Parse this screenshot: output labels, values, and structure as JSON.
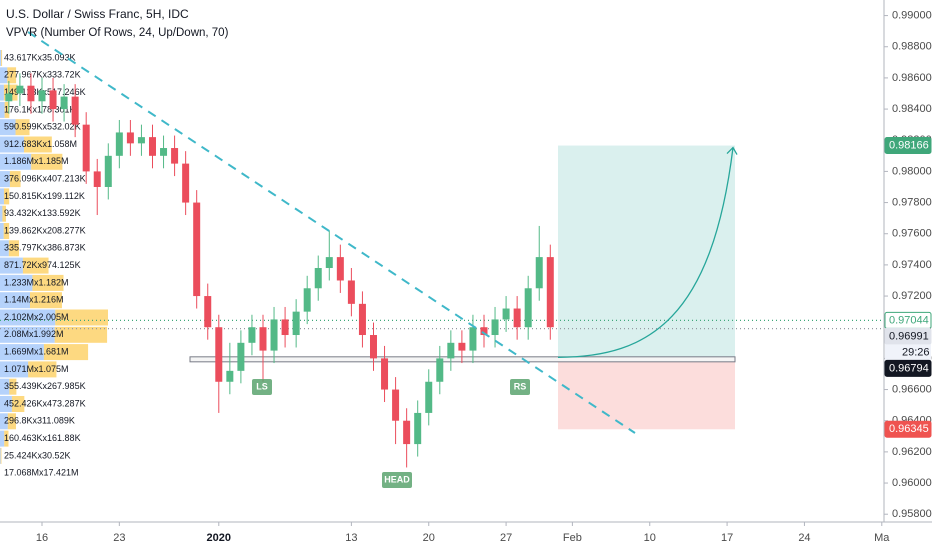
{
  "chart_data": {
    "type": "candlestick",
    "title": "U.S. Dollar / Swiss Franc, 5H, IDC",
    "subtitle": "VPVR (Number Of Rows, 24, Up/Down, 70)",
    "up_color": "#53b987",
    "down_color": "#eb4d5c",
    "x": [
      -3,
      -2,
      -1,
      0,
      1,
      2,
      3,
      4,
      5,
      6,
      7,
      8,
      9,
      10,
      11,
      12,
      13,
      14,
      15,
      16,
      17,
      18,
      19,
      20,
      21,
      22,
      23,
      24,
      25,
      26,
      27,
      28,
      29,
      30,
      31,
      32,
      33,
      34,
      35,
      36,
      37,
      38,
      39,
      40,
      41,
      42,
      43,
      44,
      45,
      46
    ],
    "open": [
      0.9845,
      0.985,
      0.9855,
      0.9845,
      0.9852,
      0.984,
      0.9848,
      0.983,
      0.98,
      0.979,
      0.981,
      0.9825,
      0.9818,
      0.9822,
      0.981,
      0.9815,
      0.9805,
      0.978,
      0.972,
      0.97,
      0.9665,
      0.9672,
      0.969,
      0.97,
      0.9685,
      0.9705,
      0.9695,
      0.971,
      0.9725,
      0.9738,
      0.9745,
      0.973,
      0.9715,
      0.9695,
      0.968,
      0.966,
      0.964,
      0.9625,
      0.9645,
      0.9665,
      0.968,
      0.969,
      0.9685,
      0.97,
      0.9695,
      0.9705,
      0.9712,
      0.97,
      0.9725,
      0.9745
    ],
    "high": [
      0.9858,
      0.9863,
      0.9863,
      0.986,
      0.986,
      0.9856,
      0.9856,
      0.9838,
      0.9808,
      0.9818,
      0.9833,
      0.9833,
      0.983,
      0.983,
      0.9823,
      0.9823,
      0.9813,
      0.9788,
      0.9728,
      0.9708,
      0.969,
      0.9698,
      0.9708,
      0.9708,
      0.9713,
      0.9713,
      0.9718,
      0.9733,
      0.9746,
      0.9762,
      0.9753,
      0.9738,
      0.9723,
      0.9703,
      0.9688,
      0.9668,
      0.9648,
      0.9653,
      0.9673,
      0.9688,
      0.9698,
      0.9698,
      0.9708,
      0.9708,
      0.9713,
      0.972,
      0.972,
      0.9733,
      0.9765,
      0.9753
    ],
    "low": [
      0.9837,
      0.9842,
      0.9837,
      0.9837,
      0.9832,
      0.9832,
      0.9822,
      0.9792,
      0.9772,
      0.9782,
      0.9802,
      0.981,
      0.981,
      0.9802,
      0.9802,
      0.9797,
      0.9772,
      0.9712,
      0.9692,
      0.9645,
      0.9657,
      0.9664,
      0.9682,
      0.9665,
      0.9677,
      0.9687,
      0.9687,
      0.9702,
      0.9717,
      0.973,
      0.9722,
      0.9707,
      0.9687,
      0.9672,
      0.9652,
      0.9625,
      0.961,
      0.9617,
      0.9637,
      0.9657,
      0.9672,
      0.9677,
      0.9677,
      0.9687,
      0.9687,
      0.9697,
      0.9692,
      0.9692,
      0.9717,
      0.9692
    ],
    "close": [
      0.985,
      0.9855,
      0.9845,
      0.9852,
      0.984,
      0.9848,
      0.983,
      0.98,
      0.979,
      0.981,
      0.9825,
      0.9818,
      0.9822,
      0.981,
      0.9815,
      0.9805,
      0.978,
      0.972,
      0.97,
      0.9665,
      0.9672,
      0.969,
      0.97,
      0.9685,
      0.9705,
      0.9695,
      0.971,
      0.9725,
      0.9738,
      0.9745,
      0.973,
      0.9715,
      0.9695,
      0.968,
      0.966,
      0.964,
      0.9625,
      0.9645,
      0.9665,
      0.968,
      0.969,
      0.9685,
      0.97,
      0.9695,
      0.9705,
      0.9712,
      0.97,
      0.9725,
      0.9745,
      0.97
    ],
    "xlim": [
      -3.8,
      76.2
    ],
    "xticks": [
      {
        "value": 0,
        "label": "16"
      },
      {
        "value": 7,
        "label": "23"
      },
      {
        "value": 16,
        "label": "2020"
      },
      {
        "value": 28,
        "label": "13"
      },
      {
        "value": 35,
        "label": "20"
      },
      {
        "value": 42,
        "label": "27"
      },
      {
        "value": 48,
        "label": "Feb"
      },
      {
        "value": 55,
        "label": "10"
      },
      {
        "value": 62,
        "label": "17"
      },
      {
        "value": 69,
        "label": "24"
      },
      {
        "value": 76,
        "label": "Ma"
      }
    ],
    "ylim": [
      0.9575,
      0.991
    ],
    "yticks": [
      {
        "value": 0.958,
        "label": "0.95800"
      },
      {
        "value": 0.96,
        "label": "0.96000"
      },
      {
        "value": 0.962,
        "label": "0.96200"
      },
      {
        "value": 0.964,
        "label": "0.96400"
      },
      {
        "value": 0.966,
        "label": "0.96600"
      },
      {
        "value": 0.968,
        "label": "0.96800"
      },
      {
        "value": 0.97,
        "label": "0.97000"
      },
      {
        "value": 0.972,
        "label": "0.97200"
      },
      {
        "value": 0.974,
        "label": "0.97400"
      },
      {
        "value": 0.976,
        "label": "0.97600"
      },
      {
        "value": 0.978,
        "label": "0.97800"
      },
      {
        "value": 0.98,
        "label": "0.98000"
      },
      {
        "value": 0.982,
        "label": "0.98200"
      },
      {
        "value": 0.984,
        "label": "0.98400"
      },
      {
        "value": 0.986,
        "label": "0.98600"
      },
      {
        "value": 0.988,
        "label": "0.98800"
      },
      {
        "value": 0.99,
        "label": "0.99000"
      }
    ],
    "volume_profile": {
      "up_color": "#5b9cf6",
      "down_color": "#fbc02d",
      "rows": [
        {
          "up": 43.617,
          "down": 35.093,
          "label": "43.617Kx35.093K"
        },
        {
          "up": 277.967,
          "down": 333.72,
          "label": "277.967Kx333.72K"
        },
        {
          "up": 149.123,
          "down": 517.246,
          "label": "149.123Kx517.246K"
        },
        {
          "up": 176.1,
          "down": 178.301,
          "label": "176.1Kx178.301K"
        },
        {
          "up": 590.599,
          "down": 532.02,
          "label": "590.599Kx532.02K"
        },
        {
          "up": 912.683,
          "down": 1058,
          "label": "912.683Kx1.058M"
        },
        {
          "up": 1186,
          "down": 1185,
          "label": "1.186Mx1.185M"
        },
        {
          "up": 376.096,
          "down": 407.213,
          "label": "376.096Kx407.213K"
        },
        {
          "up": 150.815,
          "down": 199.112,
          "label": "150.815Kx199.112K"
        },
        {
          "up": 93.432,
          "down": 133.592,
          "label": "93.432Kx133.592K"
        },
        {
          "up": 139.862,
          "down": 208.277,
          "label": "139.862Kx208.277K"
        },
        {
          "up": 335.797,
          "down": 386.873,
          "label": "335.797Kx386.873K"
        },
        {
          "up": 871.72,
          "down": 974.125,
          "label": "871.72Kx974.125K"
        },
        {
          "up": 1233,
          "down": 1182,
          "label": "1.233Mx1.182M"
        },
        {
          "up": 1140,
          "down": 1216,
          "label": "1.14Mx1.216M"
        },
        {
          "up": 2102,
          "down": 2005,
          "label": "2.102Mx2.005M"
        },
        {
          "up": 2080,
          "down": 1992,
          "label": "2.08Mx1.992M"
        },
        {
          "up": 1669,
          "down": 1681,
          "label": "1.669Mx1.681M"
        },
        {
          "up": 1071,
          "down": 1075,
          "label": "1.071Mx1.075M"
        },
        {
          "up": 355.439,
          "down": 267.985,
          "label": "355.439Kx267.985K"
        },
        {
          "up": 452.426,
          "down": 473.287,
          "label": "452.426Kx473.287K"
        },
        {
          "up": 296.8,
          "down": 311.089,
          "label": "296.8Kx311.089K"
        },
        {
          "up": 160.463,
          "down": 161.88,
          "label": "160.463Kx161.88K"
        },
        {
          "up": 25.424,
          "down": 30.52,
          "label": "25.424Kx30.52K"
        }
      ],
      "total_label": "17.068Mx17.421M"
    },
    "price_labels": [
      {
        "value": 0.98166,
        "label": "0.98166",
        "background": "#3fa77a",
        "text_color": "#ffffff"
      },
      {
        "value": 0.97044,
        "label": "0.97044",
        "background": "#ffffff",
        "text_color": "#3fa77a",
        "dotted_line": true
      },
      {
        "value": 0.96991,
        "label": "0.96991",
        "background": "#e0e3eb",
        "text_color": "#131722",
        "dotted_line": true
      },
      {
        "value": 0.96794,
        "label": "0.96794",
        "background": "#131722",
        "text_color": "#ffffff"
      },
      {
        "value": 0.96345,
        "label": "0.96345",
        "background": "#ef5350",
        "text_color": "#ffffff"
      }
    ],
    "countdown": "29:26",
    "annotations": [
      "LS",
      "RS",
      "HEAD"
    ]
  }
}
